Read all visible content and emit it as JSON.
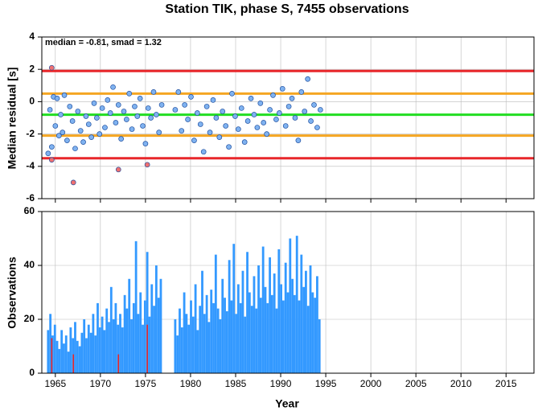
{
  "chart_data": [
    {
      "type": "scatter",
      "title": "Station TIK, phase S, 7455 observations",
      "ylabel": "Median residual [s]",
      "annotation": "median = -0.81, smad = 1.32",
      "xlim": [
        1963.5,
        2018.1
      ],
      "xticks": [
        1965,
        1970,
        1975,
        1980,
        1985,
        1990,
        1995,
        2000,
        2005,
        2010,
        2015
      ],
      "ylim": [
        -6,
        4
      ],
      "yticks": [
        -6,
        -4,
        -2,
        0,
        2,
        4
      ],
      "grid": true,
      "hlines": [
        {
          "value": 1.9,
          "color": "#e8262a"
        },
        {
          "value": 0.5,
          "color": "#f5a623"
        },
        {
          "value": -0.81,
          "color": "#22dd22"
        },
        {
          "value": -2.1,
          "color": "#f5a623"
        },
        {
          "value": -3.5,
          "color": "#e8262a"
        }
      ],
      "series": [
        {
          "color": "#7fb2f0",
          "x": [
            1964.2,
            1964.4,
            1964.6,
            1964.8,
            1965.0,
            1965.2,
            1965.4,
            1965.6,
            1965.8,
            1966.0,
            1966.3,
            1966.6,
            1966.9,
            1967.2,
            1967.5,
            1967.8,
            1968.1,
            1968.4,
            1968.7,
            1969.0,
            1969.3,
            1969.6,
            1969.9,
            1970.2,
            1970.5,
            1970.8,
            1971.1,
            1971.4,
            1971.7,
            1972.0,
            1972.3,
            1972.6,
            1972.9,
            1973.2,
            1973.5,
            1973.8,
            1974.1,
            1974.4,
            1974.7,
            1975.0,
            1975.3,
            1975.6,
            1975.9,
            1976.2,
            1976.5,
            1976.8,
            1978.3,
            1978.65,
            1979.0,
            1979.35,
            1979.7,
            1980.05,
            1980.4,
            1980.75,
            1981.1,
            1981.45,
            1981.8,
            1982.15,
            1982.5,
            1982.85,
            1983.2,
            1983.55,
            1983.9,
            1984.25,
            1984.6,
            1984.95,
            1985.3,
            1985.65,
            1986.0,
            1986.35,
            1986.7,
            1987.05,
            1987.4,
            1987.75,
            1988.1,
            1988.45,
            1988.8,
            1989.15,
            1989.5,
            1989.85,
            1990.2,
            1990.55,
            1990.9,
            1991.25,
            1991.6,
            1991.95,
            1992.3,
            1992.65,
            1993.0,
            1993.35,
            1993.7,
            1994.05,
            1994.4
          ],
          "values": [
            -3.2,
            -0.5,
            -2.8,
            0.3,
            -1.5,
            0.2,
            -2.1,
            -0.8,
            -1.9,
            0.4,
            -2.4,
            -0.3,
            -1.2,
            -2.9,
            -0.6,
            -1.8,
            -2.5,
            -0.9,
            -1.4,
            -2.2,
            -0.1,
            -1.0,
            -2.0,
            -0.4,
            -1.6,
            0.1,
            -0.7,
            0.9,
            -1.3,
            -0.2,
            -2.3,
            -0.6,
            -1.1,
            0.5,
            -1.7,
            -0.3,
            -0.9,
            0.2,
            -1.5,
            -2.6,
            -0.4,
            -1.0,
            0.6,
            -0.8,
            -1.9,
            -0.2,
            -0.5,
            0.6,
            -1.8,
            -0.2,
            -1.1,
            0.3,
            -2.4,
            -0.7,
            -1.4,
            -3.1,
            -0.3,
            -1.9,
            0.1,
            -1.0,
            -2.2,
            -0.6,
            -1.5,
            -2.8,
            0.5,
            -0.9,
            -1.7,
            -0.4,
            -2.5,
            -1.2,
            0.2,
            -0.8,
            -1.6,
            -0.1,
            -1.3,
            -2.0,
            -0.5,
            0.4,
            -1.1,
            -0.7,
            0.8,
            -1.5,
            -0.3,
            0.2,
            -1.0,
            -2.4,
            0.6,
            -0.6,
            1.4,
            -1.2,
            -0.2,
            -1.6,
            -0.5
          ]
        },
        {
          "color": "#f07070",
          "x": [
            1964.6,
            1964.6,
            1967.0,
            1972.0,
            1975.2
          ],
          "values": [
            2.1,
            -3.6,
            -5.0,
            -4.2,
            -3.9
          ]
        }
      ]
    },
    {
      "type": "bar",
      "ylabel": "Observations",
      "xlabel": "Year",
      "xlim": [
        1963.5,
        2018.1
      ],
      "xticks": [
        1965,
        1970,
        1975,
        1980,
        1985,
        1990,
        1995,
        2000,
        2005,
        2010,
        2015
      ],
      "ylim": [
        0,
        60
      ],
      "yticks": [
        0,
        20,
        40,
        60
      ],
      "grid": true,
      "series": [
        {
          "color": "#3399ff",
          "x": [
            1964.2,
            1964.45,
            1964.7,
            1964.95,
            1965.2,
            1965.45,
            1965.7,
            1965.95,
            1966.2,
            1966.45,
            1966.7,
            1966.95,
            1967.2,
            1967.45,
            1967.7,
            1967.95,
            1968.2,
            1968.45,
            1968.7,
            1968.95,
            1969.2,
            1969.45,
            1969.7,
            1969.95,
            1970.2,
            1970.45,
            1970.7,
            1970.95,
            1971.2,
            1971.45,
            1971.7,
            1971.95,
            1972.2,
            1972.45,
            1972.7,
            1972.95,
            1973.2,
            1973.45,
            1973.7,
            1973.95,
            1974.2,
            1974.45,
            1974.7,
            1974.95,
            1975.2,
            1975.45,
            1975.7,
            1975.95,
            1976.2,
            1976.45,
            1976.7,
            1978.3,
            1978.55,
            1978.8,
            1979.05,
            1979.3,
            1979.55,
            1979.8,
            1980.05,
            1980.3,
            1980.55,
            1980.8,
            1981.05,
            1981.3,
            1981.55,
            1981.8,
            1982.05,
            1982.3,
            1982.55,
            1982.8,
            1983.05,
            1983.3,
            1983.55,
            1983.8,
            1984.05,
            1984.3,
            1984.55,
            1984.8,
            1985.05,
            1985.3,
            1985.55,
            1985.8,
            1986.05,
            1986.3,
            1986.55,
            1986.8,
            1987.05,
            1987.3,
            1987.55,
            1987.8,
            1988.05,
            1988.3,
            1988.55,
            1988.8,
            1989.05,
            1989.3,
            1989.55,
            1989.8,
            1990.05,
            1990.3,
            1990.55,
            1990.8,
            1991.05,
            1991.3,
            1991.55,
            1991.8,
            1992.05,
            1992.3,
            1992.55,
            1992.8,
            1993.05,
            1993.3,
            1993.55,
            1993.8,
            1994.05,
            1994.3
          ],
          "values": [
            16,
            22,
            14,
            18,
            12,
            9,
            16,
            11,
            14,
            8,
            17,
            13,
            19,
            12,
            10,
            15,
            20,
            13,
            18,
            15,
            22,
            14,
            26,
            17,
            21,
            16,
            24,
            19,
            32,
            20,
            26,
            18,
            22,
            17,
            29,
            24,
            35,
            20,
            26,
            49,
            22,
            30,
            18,
            27,
            45,
            21,
            33,
            25,
            40,
            28,
            35,
            20,
            14,
            24,
            17,
            30,
            22,
            18,
            27,
            21,
            33,
            16,
            25,
            38,
            22,
            29,
            19,
            31,
            26,
            44,
            24,
            20,
            35,
            28,
            23,
            42,
            27,
            48,
            22,
            33,
            26,
            38,
            21,
            45,
            30,
            25,
            36,
            24,
            40,
            28,
            47,
            32,
            26,
            43,
            29,
            37,
            24,
            46,
            33,
            27,
            41,
            30,
            50,
            35,
            29,
            51,
            27,
            44,
            32,
            38,
            25,
            40,
            30,
            28,
            36,
            20
          ]
        },
        {
          "color": "#e8262a",
          "x": [
            1964.6,
            1967.0,
            1972.0,
            1975.2
          ],
          "values": [
            13,
            7,
            7,
            18
          ]
        }
      ]
    }
  ]
}
